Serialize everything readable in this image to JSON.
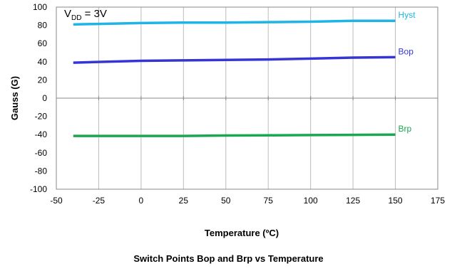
{
  "chart_data": {
    "type": "line",
    "title": "Switch Points Bop and Brp vs Temperature",
    "xlabel": "Temperature (ºC)",
    "ylabel": "Gauss (G)",
    "xlim": [
      -50,
      175
    ],
    "ylim": [
      -100,
      100
    ],
    "xticks": [
      -50,
      -25,
      0,
      25,
      50,
      75,
      100,
      125,
      150,
      175
    ],
    "yticks": [
      100,
      80,
      60,
      40,
      20,
      0,
      -20,
      -40,
      -60,
      -80,
      -100
    ],
    "grid": "vertical",
    "annotation": {
      "main": "V",
      "sub": "DD",
      "rest": " = 3V"
    },
    "series": [
      {
        "name": "Hyst",
        "color": "#1EB4E6",
        "x": [
          -40,
          0,
          25,
          50,
          75,
          100,
          125,
          150
        ],
        "y": [
          81,
          82.5,
          83,
          83,
          83.5,
          84,
          85,
          85
        ]
      },
      {
        "name": "Bop",
        "color": "#3535D6",
        "x": [
          -40,
          0,
          25,
          50,
          75,
          100,
          125,
          150
        ],
        "y": [
          39,
          41,
          41.5,
          42,
          42.5,
          43.5,
          44.5,
          45
        ]
      },
      {
        "name": "Brp",
        "color": "#19A850",
        "x": [
          -40,
          0,
          25,
          50,
          75,
          100,
          125,
          150
        ],
        "y": [
          -41.5,
          -41.5,
          -41.5,
          -41,
          -40.8,
          -40.5,
          -40.3,
          -40
        ]
      }
    ]
  }
}
